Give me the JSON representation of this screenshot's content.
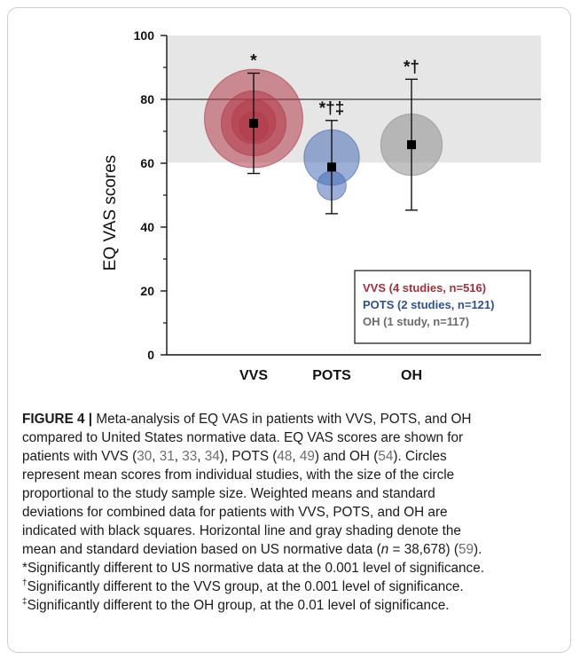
{
  "chart_data": {
    "type": "scatter",
    "title": "",
    "xlabel": "",
    "ylabel": "EQ VAS scores",
    "ylim": [
      0,
      100
    ],
    "yticks": [
      0,
      20,
      40,
      60,
      80,
      100
    ],
    "categories": [
      "VVS",
      "POTS",
      "OH"
    ],
    "reference": {
      "mean": 80,
      "sd_band": [
        60.2,
        100
      ]
    },
    "groups": [
      {
        "name": "VVS",
        "color": "#b23a48",
        "mean": 72.5,
        "lower": 56.8,
        "upper": 88.2,
        "significance": "*",
        "studies": [
          {
            "score": 74.0,
            "n": 300
          },
          {
            "score": 72.5,
            "n": 130
          },
          {
            "score": 73.0,
            "n": 60
          },
          {
            "score": 71.5,
            "n": 26
          }
        ]
      },
      {
        "name": "POTS",
        "color": "#4a6eb5",
        "mean": 58.8,
        "lower": 44.2,
        "upper": 73.4,
        "significance": "*†‡",
        "studies": [
          {
            "score": 61.8,
            "n": 95
          },
          {
            "score": 53.0,
            "n": 26
          }
        ]
      },
      {
        "name": "OH",
        "color": "#8e8e8e",
        "mean": 65.8,
        "lower": 45.3,
        "upper": 86.3,
        "significance": "*†",
        "studies": [
          {
            "score": 65.8,
            "n": 117
          }
        ]
      }
    ],
    "legend": {
      "position": "bottom-right",
      "entries": [
        {
          "label": "VVS (4 studies, n=516)",
          "color": "#a4303e"
        },
        {
          "label": "POTS (2 studies, n=121)",
          "color": "#2f4f93"
        },
        {
          "label": "OH (1 study, n=117)",
          "color": "#6b6b6b"
        }
      ]
    }
  },
  "caption": {
    "label": "FIGURE 4 |",
    "lines": [
      [
        {
          "t": " Meta-analysis of EQ VAS in patients with VVS, POTS, and OH"
        }
      ],
      [
        {
          "t": "compared to United States normative data. EQ VAS scores are shown for"
        }
      ],
      [
        {
          "t": "patients with VVS ("
        },
        {
          "t": "30",
          "l": 1
        },
        {
          "t": ", "
        },
        {
          "t": "31",
          "l": 1
        },
        {
          "t": ", "
        },
        {
          "t": "33",
          "l": 1
        },
        {
          "t": ", "
        },
        {
          "t": "34",
          "l": 1
        },
        {
          "t": "), POTS ("
        },
        {
          "t": "48",
          "l": 1
        },
        {
          "t": ", "
        },
        {
          "t": "49",
          "l": 1
        },
        {
          "t": ") and OH ("
        },
        {
          "t": "54",
          "l": 1
        },
        {
          "t": "). Circles"
        }
      ],
      [
        {
          "t": "represent mean scores from individual studies, with the size of the circle"
        }
      ],
      [
        {
          "t": "proportional to the study sample size. Weighted means and standard"
        }
      ],
      [
        {
          "t": "deviations for combined data for patients with VVS, POTS, and OH are"
        }
      ],
      [
        {
          "t": "indicated with black squares. Horizontal line and gray shading denote the"
        }
      ],
      [
        {
          "t": "mean and standard deviation based on US normative data ("
        },
        {
          "t": "n",
          "i": 1
        },
        {
          "t": " = 38,678) ("
        },
        {
          "t": "59",
          "l": 1
        },
        {
          "t": ")."
        }
      ],
      [
        {
          "t": "*Significantly different to US normative data at the 0.001 level of significance."
        }
      ],
      [
        {
          "t": "†",
          "s": 1
        },
        {
          "t": "Significantly different to the VVS group, at the 0.001 level of significance."
        }
      ],
      [
        {
          "t": "‡",
          "s": 1
        },
        {
          "t": "Significantly different to the OH group, at the 0.01 level of significance."
        }
      ]
    ]
  }
}
